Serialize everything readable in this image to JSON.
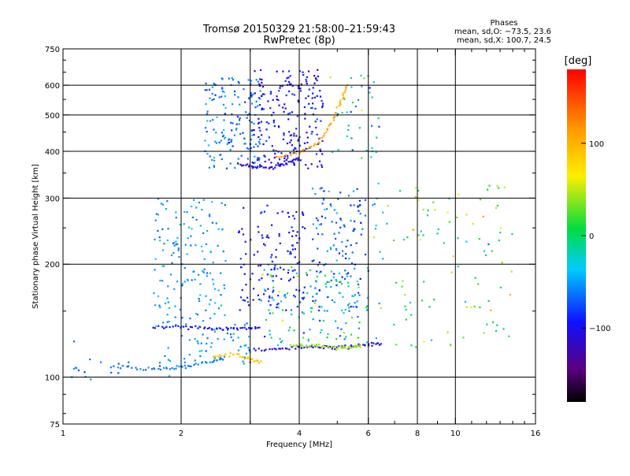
{
  "chart_data": {
    "type": "scatter",
    "title": "Tromsø 20150329 21:58:00–21:59:43",
    "subtitle": "RwPretec (8p)",
    "xlabel": "Frequency [MHz]",
    "ylabel": "Stationary phase Virtual Height [km]",
    "x_scale": "log",
    "y_scale": "log",
    "xlim": [
      1,
      16
    ],
    "ylim": [
      75,
      750
    ],
    "x_ticks": [
      1,
      2,
      4,
      6,
      8,
      10,
      16
    ],
    "y_ticks": [
      75,
      100,
      200,
      300,
      400,
      500,
      600,
      750
    ],
    "x_grid": [
      2,
      3,
      4,
      6,
      8,
      10
    ],
    "y_grid": [
      100,
      200,
      300,
      400,
      500,
      600
    ],
    "grid": true,
    "stats": {
      "heading": "Phases",
      "line_o": "mean, sd,O: −73.5, 23.6",
      "line_x": "mean, sd,X: 100.7, 24.5"
    },
    "colorbar": {
      "label": "[deg]",
      "ticks": [
        100,
        0,
        -100
      ],
      "range": [
        -180,
        180
      ],
      "colormap": "rainbow (black-purple-blue-cyan-green-yellow-orange-red)"
    },
    "traces": [
      {
        "desc": "lower o-trace",
        "x": [
          1.35,
          1.6,
          1.9,
          2.1,
          2.4,
          2.6
        ],
        "y": [
          107,
          105,
          106,
          107,
          110,
          113
        ],
        "phase": -60
      },
      {
        "desc": "lower x-trace",
        "x": [
          2.4,
          2.7,
          3.0,
          3.2
        ],
        "y": [
          113,
          115,
          112,
          110
        ],
        "phase": 90
      },
      {
        "desc": "E o-trace",
        "x": [
          3.0,
          3.5,
          4.0,
          4.5,
          5.0,
          5.5,
          6.0,
          6.5
        ],
        "y": [
          118,
          119,
          120,
          120,
          120,
          121,
          122,
          123
        ],
        "phase": -110
      },
      {
        "desc": "E x-trace",
        "x": [
          3.8,
          4.2,
          4.6,
          5.0,
          5.4,
          5.8
        ],
        "y": [
          122,
          121,
          121,
          120,
          120,
          121
        ],
        "phase": 40
      },
      {
        "desc": "oblique layer",
        "x": [
          1.7,
          2.0,
          2.3,
          2.6,
          2.9,
          3.2
        ],
        "y": [
          136,
          136,
          135,
          134,
          135,
          136
        ],
        "phase": -100
      },
      {
        "desc": "F-cusp x-trace",
        "x": [
          3.5,
          4.0,
          4.5,
          4.8,
          5.1,
          5.3
        ],
        "y": [
          385,
          395,
          420,
          470,
          540,
          610
        ],
        "phase": 110
      },
      {
        "desc": "F-cusp o-trace",
        "x": [
          2.8,
          3.1,
          3.4,
          3.7,
          4.0
        ],
        "y": [
          370,
          365,
          362,
          370,
          385
        ],
        "phase": -110
      }
    ]
  }
}
